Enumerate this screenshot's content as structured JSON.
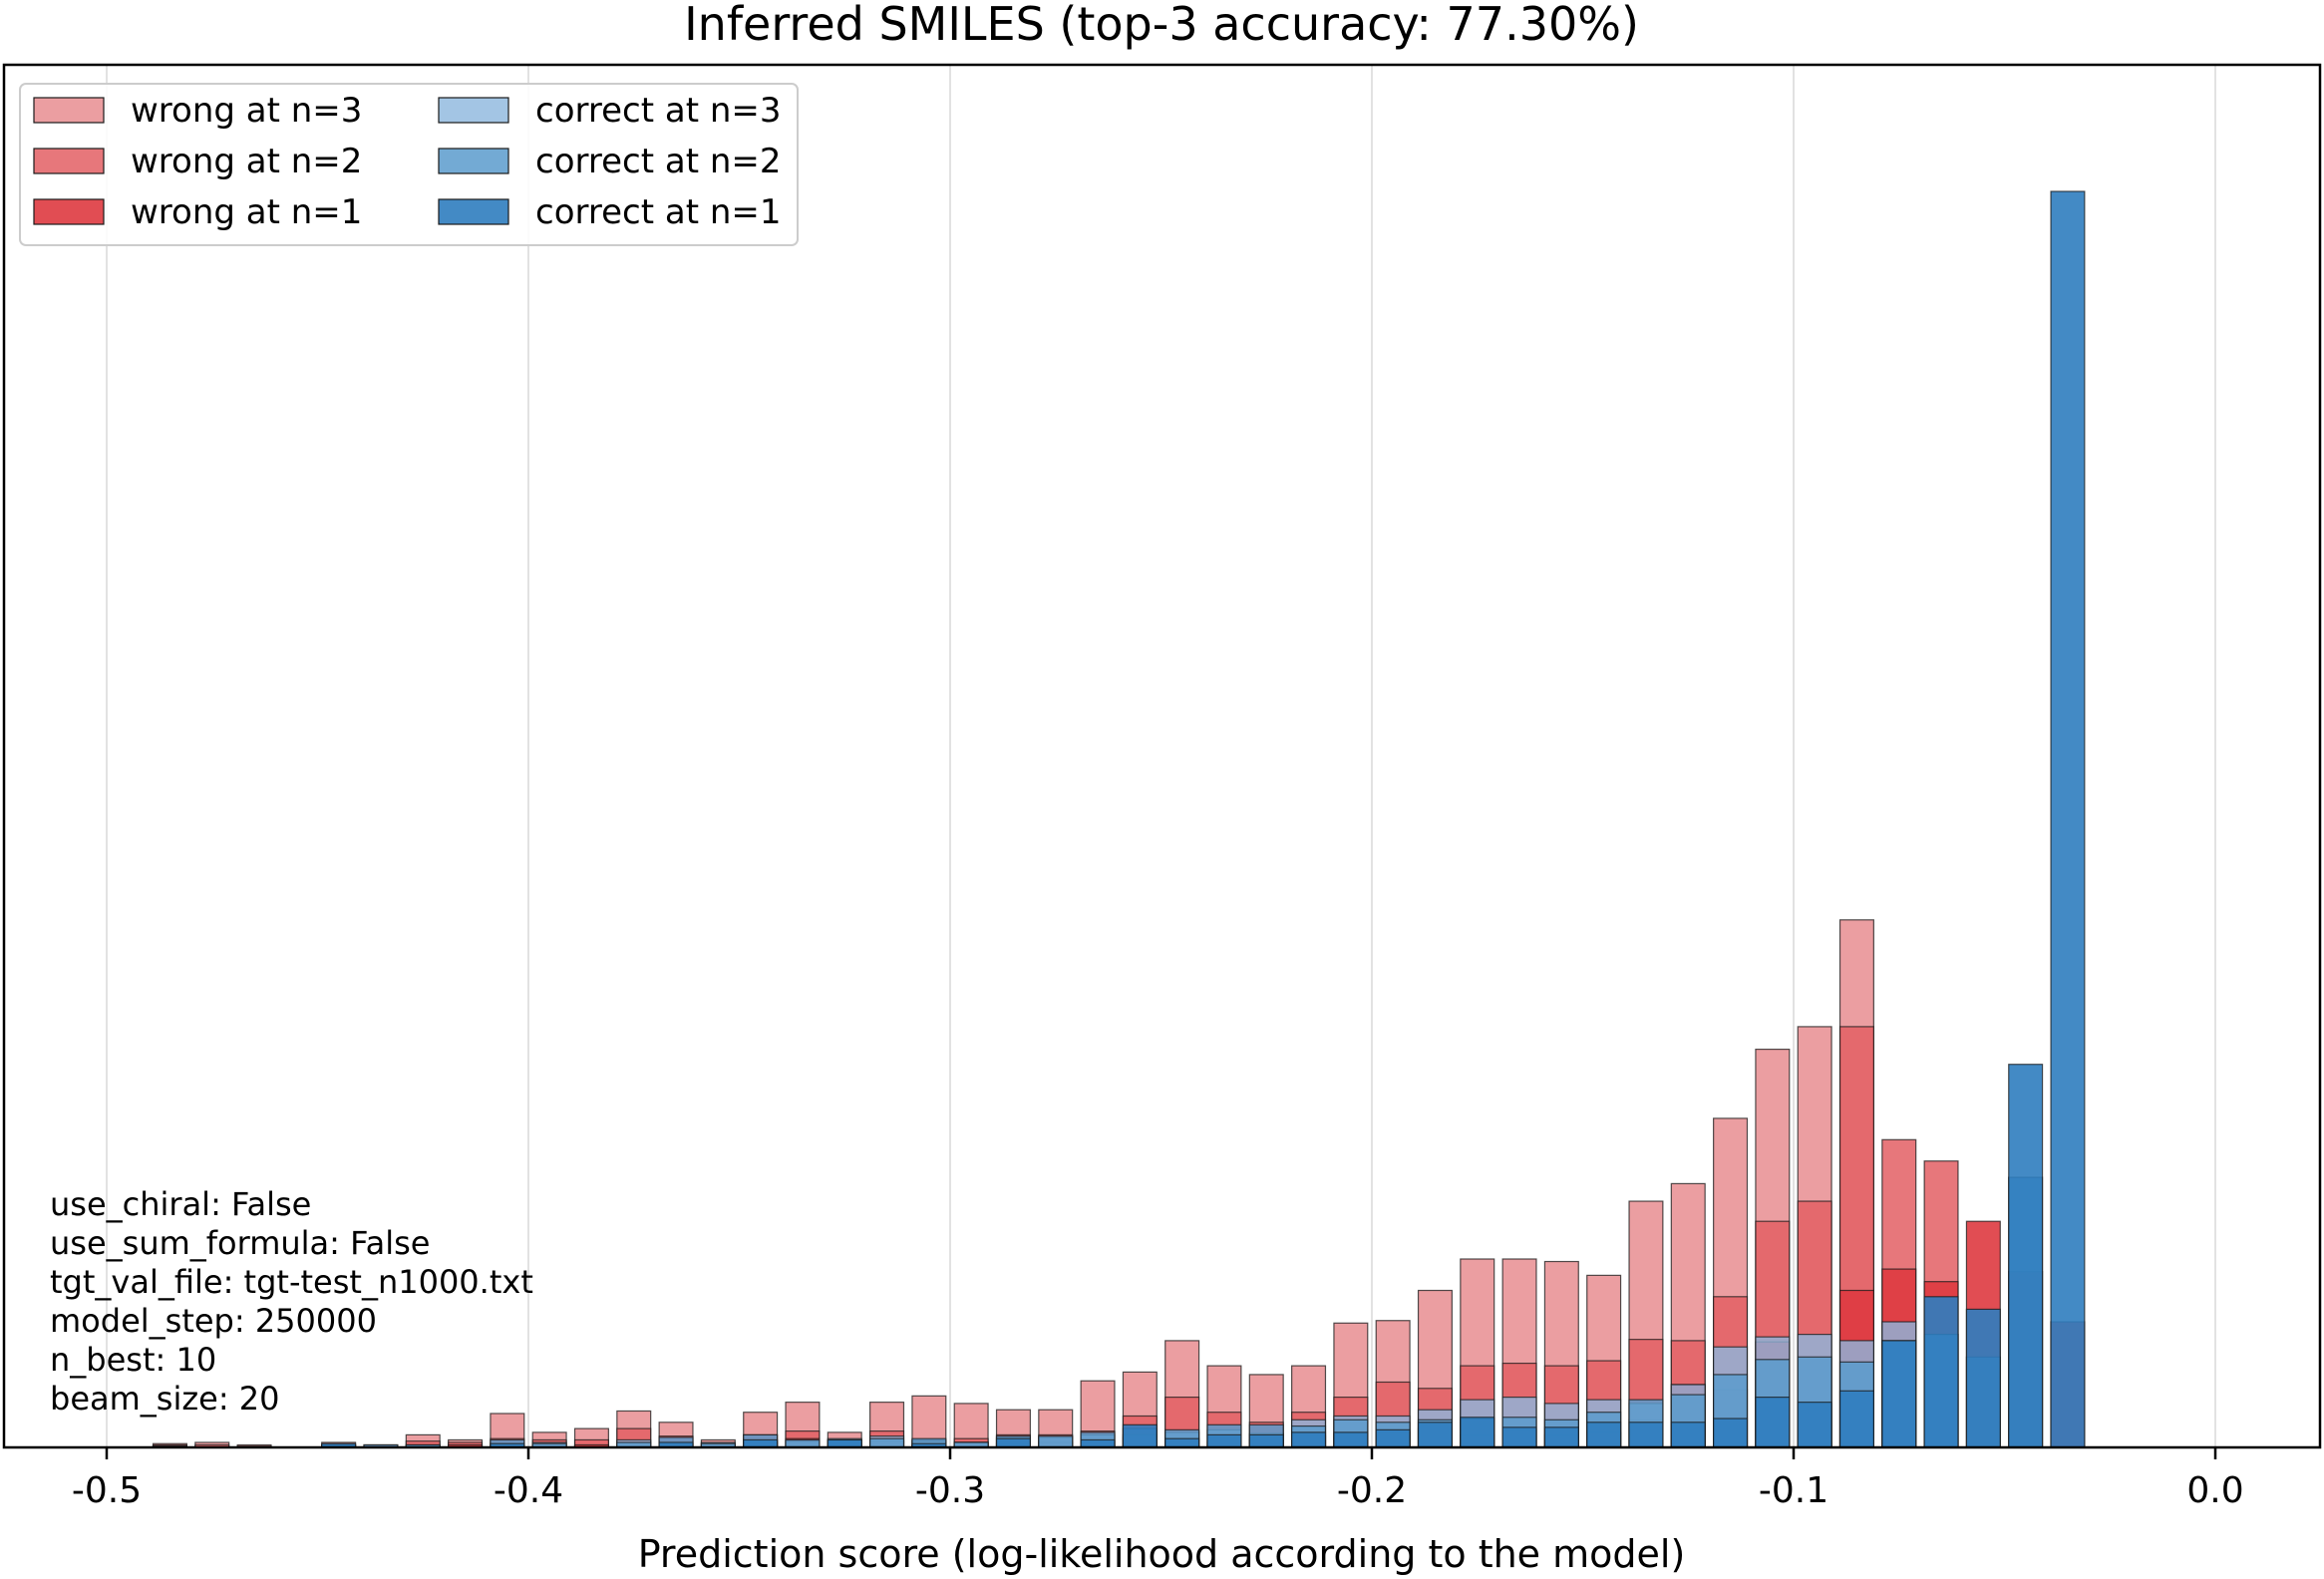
{
  "chart_data": {
    "type": "bar",
    "title": "Inferred SMILES (top-3 accuracy: 77.30%)",
    "xlabel": "Prediction score (log-likelihood according to the model)",
    "ylabel": "",
    "xlim": [
      -0.52,
      0.025
    ],
    "ylim": [
      0,
      1.0
    ],
    "xticks": [
      -0.5,
      -0.4,
      -0.3,
      -0.2,
      -0.1,
      0.0
    ],
    "xtick_labels": [
      "-0.5",
      "-0.4",
      "-0.3",
      "-0.2",
      "-0.1",
      "0.0"
    ],
    "yticks_visible": false,
    "grid": "vertical",
    "legend_position": "upper left",
    "bin_width": 0.01,
    "bar_width_fraction": 0.8,
    "series": [
      {
        "name": "wrong at n=3",
        "color": "#e6868a",
        "alpha": 0.8,
        "x": [
          -0.485,
          -0.475,
          -0.465,
          -0.445,
          -0.435,
          -0.425,
          -0.415,
          -0.405,
          -0.395,
          -0.385,
          -0.375,
          -0.365,
          -0.355,
          -0.345,
          -0.335,
          -0.325,
          -0.315,
          -0.305,
          -0.295,
          -0.285,
          -0.275,
          -0.265,
          -0.255,
          -0.245,
          -0.235,
          -0.225,
          -0.215,
          -0.205,
          -0.195,
          -0.185,
          -0.175,
          -0.165,
          -0.155,
          -0.145,
          -0.135,
          -0.125,
          -0.115,
          -0.105,
          -0.095,
          -0.085,
          -0.075,
          -0.065,
          -0.055,
          -0.045,
          -0.035
        ],
        "values": [
          0.003,
          0.004,
          0.002,
          0.004,
          0.002,
          0.01,
          0.006,
          0.027,
          0.012,
          0.015,
          0.029,
          0.02,
          0.006,
          0.028,
          0.036,
          0.012,
          0.036,
          0.041,
          0.035,
          0.03,
          0.03,
          0.053,
          0.06,
          0.085,
          0.065,
          0.058,
          0.065,
          0.099,
          0.101,
          0.125,
          0.15,
          0.15,
          0.148,
          0.137,
          0.196,
          0.21,
          0.262,
          0.317,
          0.335,
          0.42,
          0.0,
          0.0,
          0.0,
          0.0,
          0.0
        ]
      },
      {
        "name": "wrong at n=2",
        "color": "#e35f64",
        "alpha": 0.85,
        "x": [
          -0.485,
          -0.475,
          -0.465,
          -0.445,
          -0.425,
          -0.415,
          -0.405,
          -0.395,
          -0.385,
          -0.375,
          -0.365,
          -0.355,
          -0.345,
          -0.335,
          -0.325,
          -0.315,
          -0.305,
          -0.295,
          -0.285,
          -0.275,
          -0.265,
          -0.255,
          -0.245,
          -0.235,
          -0.225,
          -0.215,
          -0.205,
          -0.195,
          -0.185,
          -0.175,
          -0.165,
          -0.155,
          -0.145,
          -0.135,
          -0.125,
          -0.115,
          -0.105,
          -0.095,
          -0.085,
          -0.075,
          -0.065,
          -0.055,
          -0.045,
          -0.035
        ],
        "values": [
          0.002,
          0.002,
          0.001,
          0.002,
          0.005,
          0.004,
          0.007,
          0.006,
          0.006,
          0.015,
          0.009,
          0.003,
          0.01,
          0.013,
          0.006,
          0.013,
          0.006,
          0.007,
          0.01,
          0.01,
          0.013,
          0.025,
          0.04,
          0.028,
          0.02,
          0.028,
          0.04,
          0.052,
          0.047,
          0.065,
          0.067,
          0.065,
          0.069,
          0.086,
          0.085,
          0.12,
          0.18,
          0.196,
          0.335,
          0.245,
          0.228,
          0.0,
          0.0,
          0.0
        ]
      },
      {
        "name": "wrong at n=1",
        "color": "#de3a40",
        "alpha": 0.9,
        "x": [
          -0.415,
          -0.385,
          -0.365,
          -0.345,
          -0.335,
          -0.325,
          -0.315,
          -0.305,
          -0.295,
          -0.285,
          -0.275,
          -0.265,
          -0.255,
          -0.245,
          -0.235,
          -0.225,
          -0.215,
          -0.205,
          -0.195,
          -0.185,
          -0.175,
          -0.165,
          -0.155,
          -0.145,
          -0.135,
          -0.125,
          -0.115,
          -0.105,
          -0.095,
          -0.085,
          -0.075,
          -0.065,
          -0.055,
          -0.045,
          -0.035
        ],
        "values": [
          0.002,
          0.002,
          0.003,
          0.004,
          0.007,
          0.003,
          0.005,
          0.002,
          0.004,
          0.003,
          0.004,
          0.005,
          0.008,
          0.007,
          0.004,
          0.006,
          0.009,
          0.011,
          0.012,
          0.015,
          0.01,
          0.014,
          0.01,
          0.012,
          0.022,
          0.05,
          0.046,
          0.084,
          0.035,
          0.125,
          0.142,
          0.132,
          0.18,
          0.14,
          0.1
        ]
      },
      {
        "name": "correct at n=3",
        "color": "#8cb6dd",
        "alpha": 0.8,
        "x": [
          -0.485,
          -0.445,
          -0.425,
          -0.405,
          -0.395,
          -0.375,
          -0.355,
          -0.345,
          -0.335,
          -0.325,
          -0.315,
          -0.305,
          -0.295,
          -0.285,
          -0.275,
          -0.265,
          -0.255,
          -0.245,
          -0.235,
          -0.225,
          -0.215,
          -0.205,
          -0.195,
          -0.185,
          -0.175,
          -0.165,
          -0.155,
          -0.145,
          -0.135,
          -0.125,
          -0.115,
          -0.105,
          -0.095,
          -0.085,
          -0.075,
          -0.065,
          -0.055,
          -0.045,
          -0.035
        ],
        "values": [
          0.001,
          0.002,
          0.002,
          0.003,
          0.004,
          0.006,
          0.004,
          0.006,
          0.005,
          0.007,
          0.009,
          0.005,
          0.004,
          0.008,
          0.008,
          0.01,
          0.01,
          0.012,
          0.014,
          0.011,
          0.022,
          0.025,
          0.025,
          0.03,
          0.038,
          0.04,
          0.035,
          0.038,
          0.035,
          0.05,
          0.08,
          0.088,
          0.09,
          0.085,
          0.1,
          0.09,
          0.0,
          0.0,
          0.0
        ]
      },
      {
        "name": "correct at n=2",
        "color": "#5b9bcc",
        "alpha": 0.85,
        "x": [
          -0.485,
          -0.445,
          -0.435,
          -0.425,
          -0.405,
          -0.395,
          -0.375,
          -0.365,
          -0.355,
          -0.345,
          -0.335,
          -0.325,
          -0.315,
          -0.305,
          -0.295,
          -0.285,
          -0.275,
          -0.265,
          -0.255,
          -0.245,
          -0.235,
          -0.225,
          -0.215,
          -0.205,
          -0.195,
          -0.185,
          -0.175,
          -0.165,
          -0.155,
          -0.145,
          -0.135,
          -0.125,
          -0.115,
          -0.105,
          -0.095,
          -0.085,
          -0.075,
          -0.065,
          -0.055,
          -0.045,
          -0.035
        ],
        "values": [
          0.001,
          0.001,
          0.002,
          0.002,
          0.006,
          0.003,
          0.004,
          0.008,
          0.003,
          0.01,
          0.006,
          0.006,
          0.007,
          0.007,
          0.004,
          0.009,
          0.009,
          0.012,
          0.015,
          0.014,
          0.018,
          0.018,
          0.017,
          0.022,
          0.02,
          0.022,
          0.023,
          0.024,
          0.022,
          0.028,
          0.038,
          0.042,
          0.058,
          0.07,
          0.072,
          0.068,
          0.085,
          0.09,
          0.072,
          0.215,
          0.0
        ]
      },
      {
        "name": "correct at n=1",
        "color": "#2f7dbf",
        "alpha": 0.9,
        "x": [
          -0.445,
          -0.405,
          -0.365,
          -0.345,
          -0.325,
          -0.305,
          -0.285,
          -0.265,
          -0.255,
          -0.245,
          -0.235,
          -0.225,
          -0.215,
          -0.205,
          -0.195,
          -0.185,
          -0.175,
          -0.165,
          -0.155,
          -0.145,
          -0.135,
          -0.125,
          -0.115,
          -0.105,
          -0.095,
          -0.085,
          -0.075,
          -0.065,
          -0.055,
          -0.045,
          -0.035
        ],
        "values": [
          0.003,
          0.003,
          0.004,
          0.006,
          0.006,
          0.003,
          0.007,
          0.006,
          0.018,
          0.007,
          0.01,
          0.01,
          0.012,
          0.012,
          0.014,
          0.02,
          0.024,
          0.016,
          0.016,
          0.02,
          0.02,
          0.02,
          0.023,
          0.04,
          0.036,
          0.045,
          0.085,
          0.12,
          0.11,
          0.305,
          1.0
        ]
      }
    ],
    "annotations": [
      "use_chiral: False",
      "use_sum_formula: False",
      "tgt_val_file: tgt-test_n1000.txt",
      "model_step: 250000",
      "n_best: 10",
      "beam_size: 20"
    ]
  }
}
